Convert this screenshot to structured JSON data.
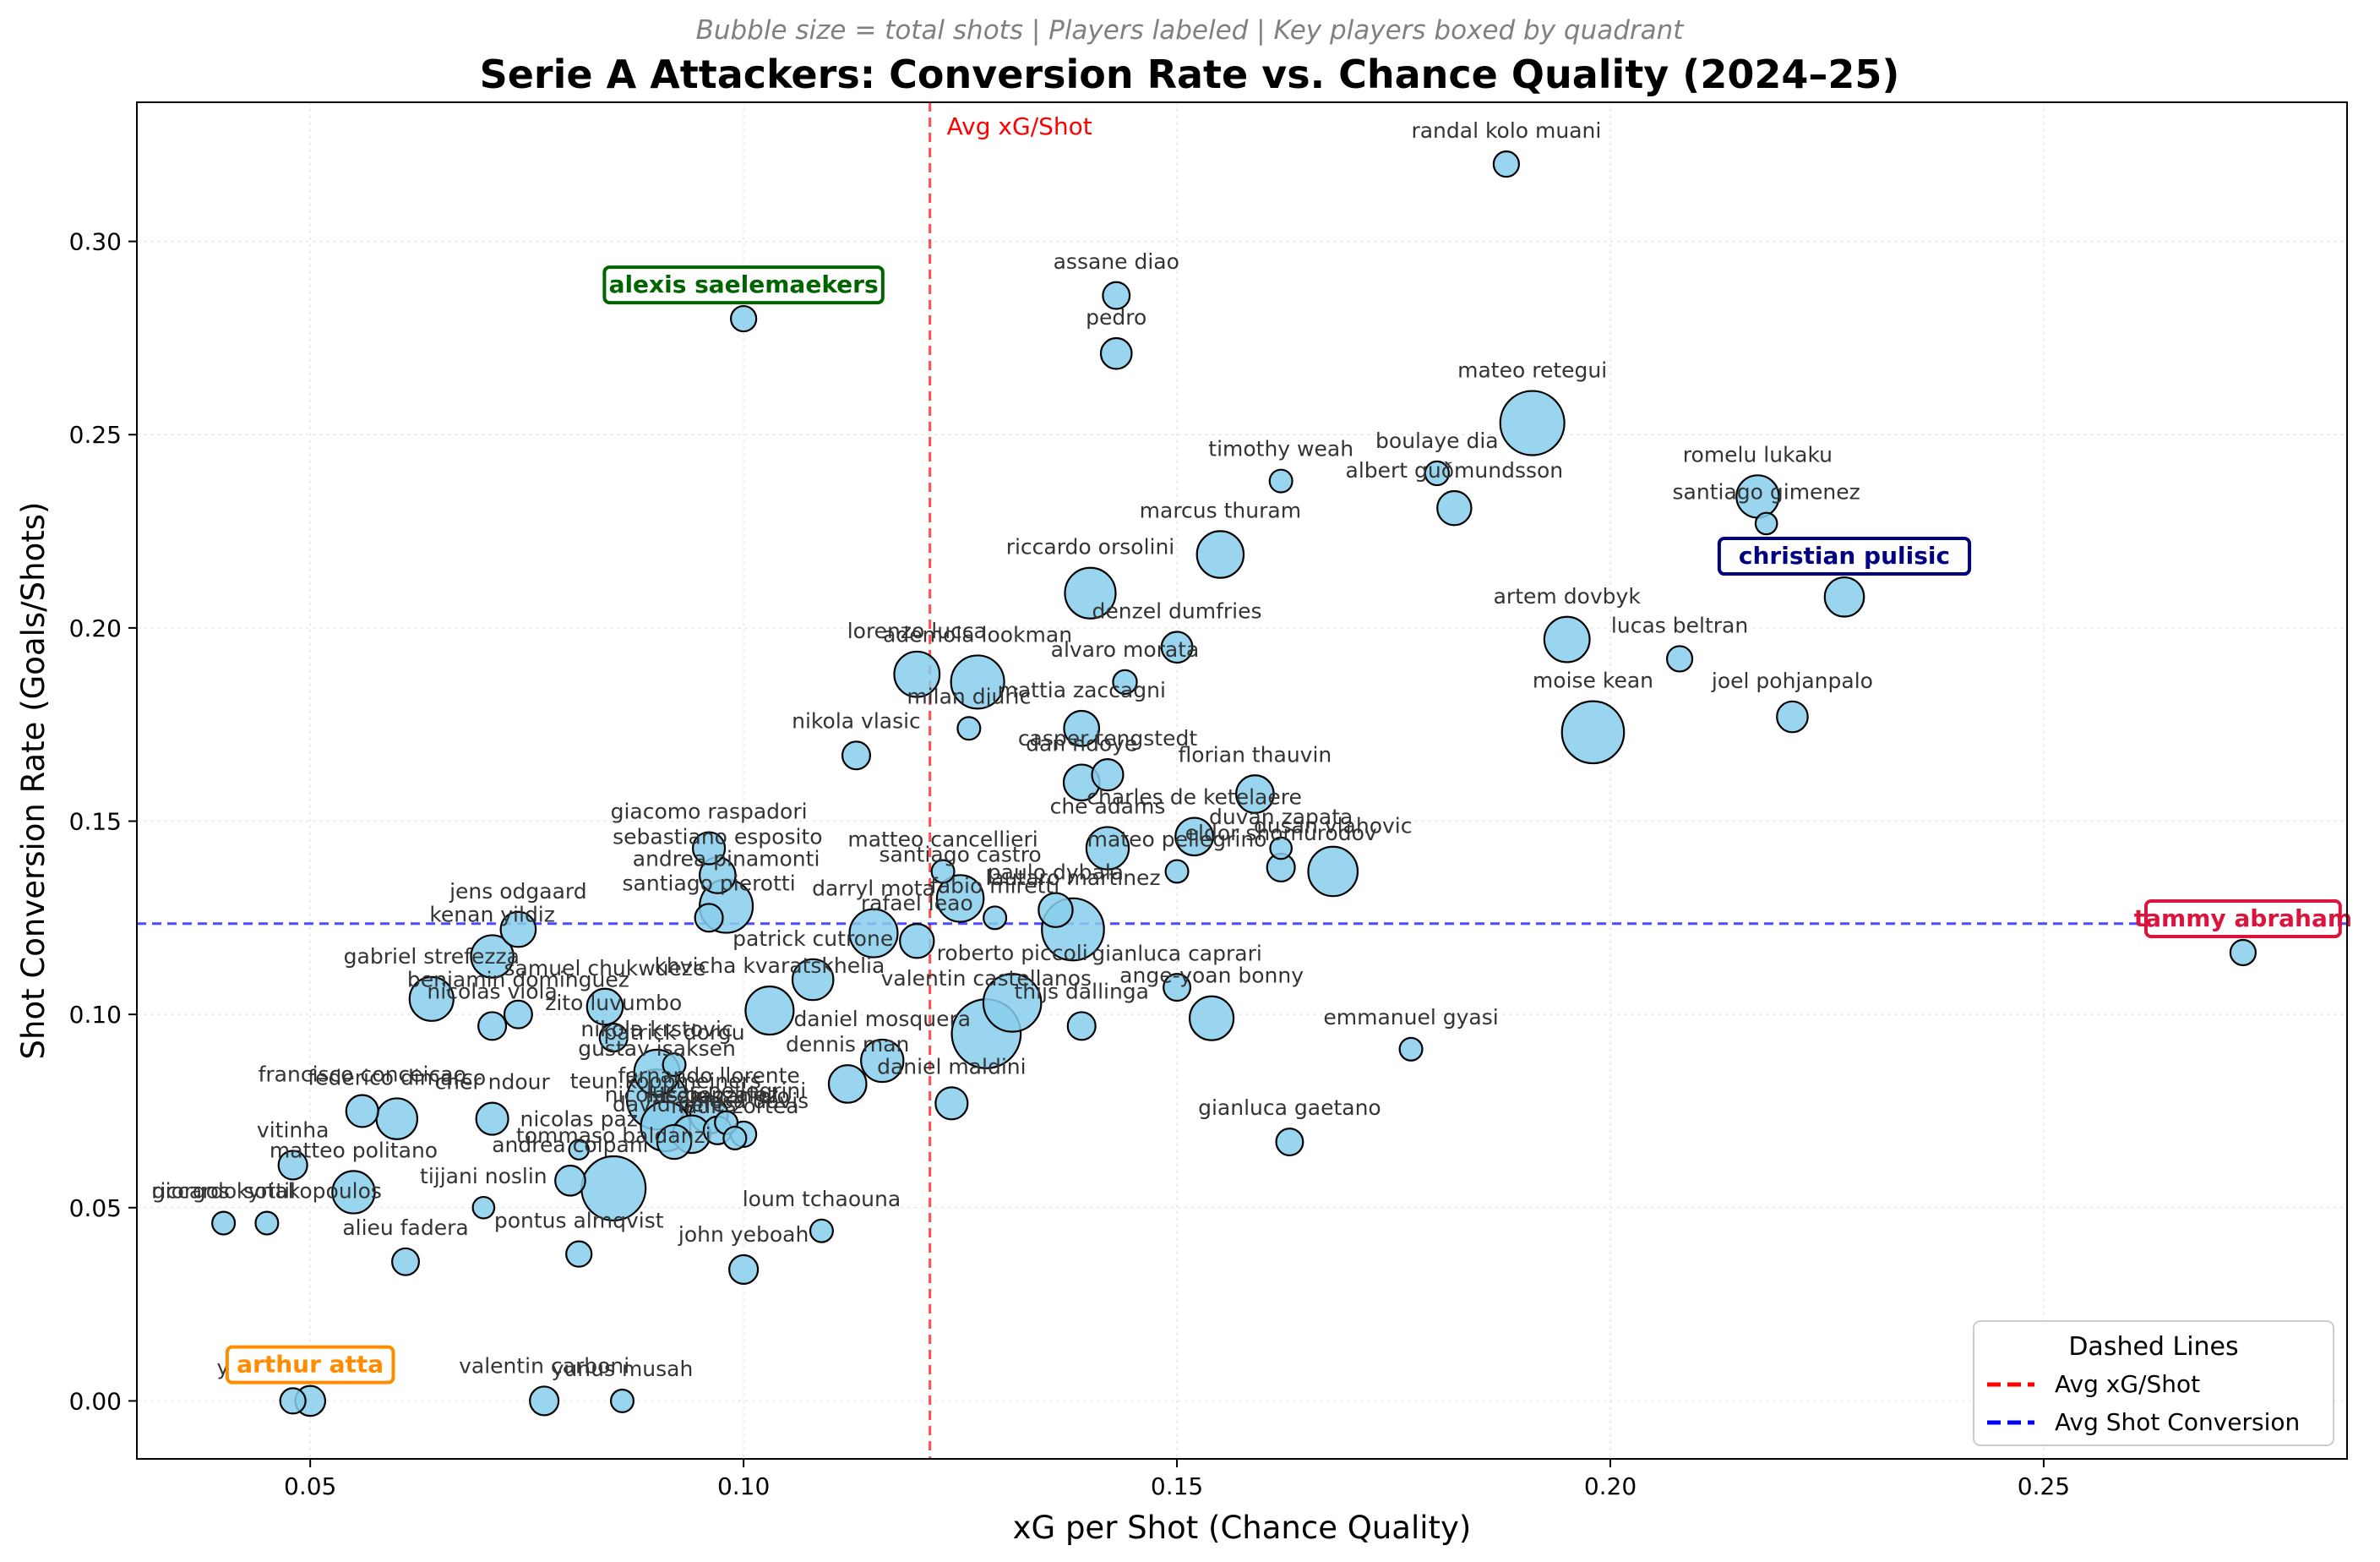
{
  "chart_data": {
    "type": "scatter",
    "subtitle": "Bubble size = total shots | Players labeled | Key players boxed by quadrant",
    "title": "Serie A Attackers: Conversion Rate vs. Chance Quality (2024–25)",
    "xlabel": "xG per Shot (Chance Quality)",
    "ylabel": "Shot Conversion Rate (Goals/Shots)",
    "xlim": [
      0.03,
      0.285
    ],
    "ylim": [
      -0.015,
      0.336
    ],
    "xticks": [
      "0.05",
      "0.10",
      "0.15",
      "0.20",
      "0.25"
    ],
    "xtick_values": [
      0.05,
      0.1,
      0.15,
      0.2,
      0.25
    ],
    "yticks": [
      "0.00",
      "0.05",
      "0.10",
      "0.15",
      "0.20",
      "0.25",
      "0.30"
    ],
    "ytick_values": [
      0.0,
      0.05,
      0.1,
      0.15,
      0.2,
      0.25,
      0.3
    ],
    "grid": true,
    "bubble_color": "#87CEEB",
    "reference_lines": {
      "vertical": {
        "value": 0.1215,
        "label": "Avg xG/Shot",
        "color": "#FF0000"
      },
      "horizontal": {
        "value": 0.1235,
        "color": "#0000FF"
      }
    },
    "legend": {
      "title": "Dashed Lines",
      "position": "lower-right",
      "items": [
        {
          "label": "Avg xG/Shot",
          "color": "#FF0000"
        },
        {
          "label": "Avg Shot Conversion",
          "color": "#0000FF"
        }
      ]
    },
    "points": [
      {
        "label": "randal kolo muani",
        "x": 0.188,
        "y": 0.32,
        "shots": 25
      },
      {
        "label": "assane diao",
        "x": 0.143,
        "y": 0.286,
        "shots": 28
      },
      {
        "label": "alexis saelemaekers",
        "x": 0.1,
        "y": 0.28,
        "shots": 25,
        "key": true,
        "key_color": "#006400"
      },
      {
        "label": "pedro",
        "x": 0.143,
        "y": 0.271,
        "shots": 37
      },
      {
        "label": "mateo retegui",
        "x": 0.191,
        "y": 0.253,
        "shots": 160
      },
      {
        "label": "albert guðmundsson",
        "x": 0.182,
        "y": 0.231,
        "shots": 45
      },
      {
        "label": "timothy weah",
        "x": 0.162,
        "y": 0.238,
        "shots": 20
      },
      {
        "label": "boulaye dia",
        "x": 0.18,
        "y": 0.24,
        "shots": 22
      },
      {
        "label": "romelu lukaku",
        "x": 0.217,
        "y": 0.234,
        "shots": 70
      },
      {
        "label": "santiago gimenez",
        "x": 0.218,
        "y": 0.227,
        "shots": 18
      },
      {
        "label": "christian pulisic",
        "x": 0.227,
        "y": 0.208,
        "shots": 60,
        "key": true,
        "key_color": "#000080"
      },
      {
        "label": "marcus thuram",
        "x": 0.155,
        "y": 0.219,
        "shots": 85
      },
      {
        "label": "riccardo orsolini",
        "x": 0.14,
        "y": 0.209,
        "shots": 100
      },
      {
        "label": "artem dovbyk",
        "x": 0.195,
        "y": 0.197,
        "shots": 80
      },
      {
        "label": "lucas beltran",
        "x": 0.208,
        "y": 0.192,
        "shots": 25
      },
      {
        "label": "denzel dumfries",
        "x": 0.15,
        "y": 0.195,
        "shots": 37
      },
      {
        "label": "lorenzo lucca",
        "x": 0.12,
        "y": 0.188,
        "shots": 80
      },
      {
        "label": "ademola lookman",
        "x": 0.127,
        "y": 0.186,
        "shots": 110
      },
      {
        "label": "alvaro morata",
        "x": 0.144,
        "y": 0.186,
        "shots": 22
      },
      {
        "label": "milan djuric",
        "x": 0.126,
        "y": 0.174,
        "shots": 20
      },
      {
        "label": "mattia zaccagni",
        "x": 0.139,
        "y": 0.174,
        "shots": 48
      },
      {
        "label": "joel pohjanpalo",
        "x": 0.221,
        "y": 0.177,
        "shots": 37
      },
      {
        "label": "moise kean",
        "x": 0.198,
        "y": 0.173,
        "shots": 150
      },
      {
        "label": "nikola vlasic",
        "x": 0.113,
        "y": 0.167,
        "shots": 30
      },
      {
        "label": "casper tengstedt",
        "x": 0.142,
        "y": 0.162,
        "shots": 38
      },
      {
        "label": "dan ndoye",
        "x": 0.139,
        "y": 0.16,
        "shots": 50
      },
      {
        "label": "florian thauvin",
        "x": 0.159,
        "y": 0.157,
        "shots": 55
      },
      {
        "label": "charles de ketelaere",
        "x": 0.152,
        "y": 0.146,
        "shots": 55
      },
      {
        "label": "che adams",
        "x": 0.142,
        "y": 0.143,
        "shots": 70
      },
      {
        "label": "duvan zapata",
        "x": 0.162,
        "y": 0.143,
        "shots": 18
      },
      {
        "label": "mateo pellegrino",
        "x": 0.15,
        "y": 0.137,
        "shots": 20
      },
      {
        "label": "eldor shomurodov",
        "x": 0.162,
        "y": 0.138,
        "shots": 30
      },
      {
        "label": "dusan vlahovic",
        "x": 0.168,
        "y": 0.137,
        "shots": 95
      },
      {
        "label": "giacomo raspadori",
        "x": 0.096,
        "y": 0.143,
        "shots": 40
      },
      {
        "label": "sebastiano esposito",
        "x": 0.097,
        "y": 0.136,
        "shots": 50
      },
      {
        "label": "matteo cancellieri",
        "x": 0.123,
        "y": 0.137,
        "shots": 20
      },
      {
        "label": "santiago castro",
        "x": 0.125,
        "y": 0.13,
        "shots": 85
      },
      {
        "label": "paulo dybala",
        "x": 0.136,
        "y": 0.127,
        "shots": 45
      },
      {
        "label": "fabio miretti",
        "x": 0.129,
        "y": 0.125,
        "shots": 20
      },
      {
        "label": "andrea pinamonti",
        "x": 0.098,
        "y": 0.128,
        "shots": 110
      },
      {
        "label": "santiago pierotti",
        "x": 0.096,
        "y": 0.125,
        "shots": 30
      },
      {
        "label": "lautaro martinez",
        "x": 0.138,
        "y": 0.122,
        "shots": 150
      },
      {
        "label": "jens odgaard",
        "x": 0.074,
        "y": 0.122,
        "shots": 48
      },
      {
        "label": "darryl mota",
        "x": 0.115,
        "y": 0.121,
        "shots": 90
      },
      {
        "label": "rafael leao",
        "x": 0.12,
        "y": 0.119,
        "shots": 45
      },
      {
        "label": "kenan yildiz",
        "x": 0.071,
        "y": 0.115,
        "shots": 70
      },
      {
        "label": "gianluca caprari",
        "x": 0.15,
        "y": 0.107,
        "shots": 28
      },
      {
        "label": "tammy abraham",
        "x": 0.273,
        "y": 0.116,
        "shots": 25,
        "key": true,
        "key_color": "#DC143C"
      },
      {
        "label": "gabriel strefezza",
        "x": 0.064,
        "y": 0.104,
        "shots": 75
      },
      {
        "label": "khvicha kvaratskhelia",
        "x": 0.103,
        "y": 0.101,
        "shots": 90
      },
      {
        "label": "patrick cutrone",
        "x": 0.108,
        "y": 0.109,
        "shots": 65
      },
      {
        "label": "benjamin dominguez",
        "x": 0.074,
        "y": 0.1,
        "shots": 30
      },
      {
        "label": "nicolas viola",
        "x": 0.071,
        "y": 0.097,
        "shots": 30
      },
      {
        "label": "samuel chukwueze",
        "x": 0.084,
        "y": 0.102,
        "shots": 50
      },
      {
        "label": "roberto piccoli",
        "x": 0.131,
        "y": 0.103,
        "shots": 130
      },
      {
        "label": "thijs dallinga",
        "x": 0.139,
        "y": 0.097,
        "shots": 30
      },
      {
        "label": "ange-yoan bonny",
        "x": 0.154,
        "y": 0.099,
        "shots": 75
      },
      {
        "label": "valentin castellanos",
        "x": 0.128,
        "y": 0.095,
        "shots": 185
      },
      {
        "label": "emmanuel gyasi",
        "x": 0.177,
        "y": 0.091,
        "shots": 20
      },
      {
        "label": "zito luvumbo",
        "x": 0.085,
        "y": 0.094,
        "shots": 30
      },
      {
        "label": "nikola krstovic",
        "x": 0.09,
        "y": 0.085,
        "shots": 80
      },
      {
        "label": "patrick dorgu",
        "x": 0.092,
        "y": 0.087,
        "shots": 20
      },
      {
        "label": "daniel mosquera",
        "x": 0.116,
        "y": 0.088,
        "shots": 70
      },
      {
        "label": "dennis man",
        "x": 0.112,
        "y": 0.082,
        "shots": 55
      },
      {
        "label": "daniel maldini",
        "x": 0.124,
        "y": 0.077,
        "shots": 40
      },
      {
        "label": "francisco conceicao",
        "x": 0.056,
        "y": 0.075,
        "shots": 40
      },
      {
        "label": "federico dimarco",
        "x": 0.06,
        "y": 0.073,
        "shots": 65
      },
      {
        "label": "cher ndour",
        "x": 0.071,
        "y": 0.073,
        "shots": 40
      },
      {
        "label": "gustav isaksen",
        "x": 0.09,
        "y": 0.078,
        "shots": 140
      },
      {
        "label": "teun koopmeiners",
        "x": 0.091,
        "y": 0.071,
        "shots": 95
      },
      {
        "label": "fernando llorente",
        "x": 0.096,
        "y": 0.074,
        "shots": 55
      },
      {
        "label": "lucas pellegrini",
        "x": 0.098,
        "y": 0.072,
        "shots": 20
      },
      {
        "label": "david neres",
        "x": 0.092,
        "y": 0.067,
        "shots": 45
      },
      {
        "label": "nicolas gonzalez",
        "x": 0.094,
        "y": 0.069,
        "shots": 55
      },
      {
        "label": "nicolo zaniolo",
        "x": 0.097,
        "y": 0.07,
        "shots": 30
      },
      {
        "label": "nadir zortea",
        "x": 0.099,
        "y": 0.068,
        "shots": 20
      },
      {
        "label": "chiesa davis",
        "x": 0.1,
        "y": 0.069,
        "shots": 25
      },
      {
        "label": "gianluca gaetano",
        "x": 0.163,
        "y": 0.067,
        "shots": 28
      },
      {
        "label": "vitinha",
        "x": 0.048,
        "y": 0.061,
        "shots": 32
      },
      {
        "label": "matteo politano",
        "x": 0.055,
        "y": 0.054,
        "shots": 70
      },
      {
        "label": "andrea colpani",
        "x": 0.08,
        "y": 0.057,
        "shots": 35
      },
      {
        "label": "tommaso baldanzi",
        "x": 0.085,
        "y": 0.055,
        "shots": 160
      },
      {
        "label": "nicolas paz",
        "x": 0.081,
        "y": 0.065,
        "shots": 15
      },
      {
        "label": "riccardo sottil",
        "x": 0.04,
        "y": 0.046,
        "shots": 20
      },
      {
        "label": "giorgos kyriakopoulos",
        "x": 0.045,
        "y": 0.046,
        "shots": 20
      },
      {
        "label": "alieu fadera",
        "x": 0.061,
        "y": 0.036,
        "shots": 28
      },
      {
        "label": "tijjani noslin",
        "x": 0.07,
        "y": 0.05,
        "shots": 18
      },
      {
        "label": "pontus almqvist",
        "x": 0.081,
        "y": 0.038,
        "shots": 25
      },
      {
        "label": "loum tchaouna",
        "x": 0.109,
        "y": 0.044,
        "shots": 20
      },
      {
        "label": "john yeboah",
        "x": 0.1,
        "y": 0.034,
        "shots": 32
      },
      {
        "label": "yann karamoh",
        "x": 0.048,
        "y": 0.0,
        "shots": 25
      },
      {
        "label": "arthur atta",
        "x": 0.05,
        "y": 0.0,
        "shots": 35,
        "key": true,
        "key_color": "#FF8C00"
      },
      {
        "label": "valentin carboni",
        "x": 0.077,
        "y": 0.0,
        "shots": 32
      },
      {
        "label": "yunus musah",
        "x": 0.086,
        "y": 0.0,
        "shots": 20
      }
    ]
  }
}
